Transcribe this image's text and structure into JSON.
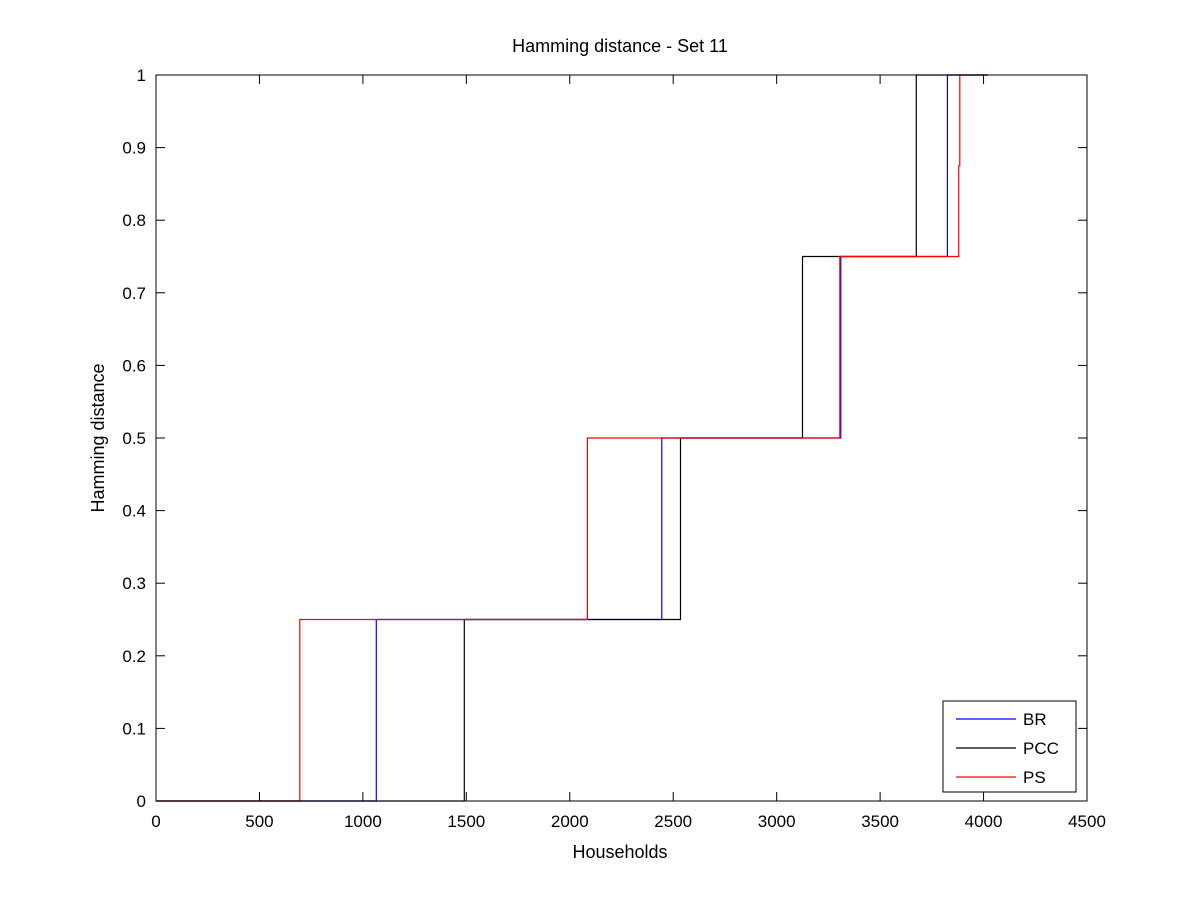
{
  "chart_data": {
    "type": "line",
    "title": "Hamming distance - Set 11",
    "xlabel": "Households",
    "ylabel": "Hamming distance",
    "xlim": [
      0,
      4500
    ],
    "ylim": [
      0,
      1
    ],
    "x_ticks": [
      "0",
      "500",
      "1000",
      "1500",
      "2000",
      "2500",
      "3000",
      "3500",
      "4000",
      "4500"
    ],
    "y_ticks": [
      "0",
      "0.1",
      "0.2",
      "0.3",
      "0.4",
      "0.5",
      "0.6",
      "0.7",
      "0.8",
      "0.9",
      "1"
    ],
    "x_tick_values": [
      0,
      500,
      1000,
      1500,
      2000,
      2500,
      3000,
      3500,
      4000,
      4500
    ],
    "y_tick_values": [
      0,
      0.1,
      0.2,
      0.3,
      0.4,
      0.5,
      0.6,
      0.7,
      0.8,
      0.9,
      1
    ],
    "grid": false,
    "legend_position": "bottom-right",
    "series": [
      {
        "name": "BR",
        "color": "#0000ff",
        "points": [
          [
            0,
            0
          ],
          [
            1065,
            0
          ],
          [
            1065,
            0.25
          ],
          [
            2445,
            0.25
          ],
          [
            2445,
            0.5
          ],
          [
            3310,
            0.5
          ],
          [
            3310,
            0.625
          ],
          [
            3310,
            0.75
          ],
          [
            3825,
            0.75
          ],
          [
            3825,
            1
          ],
          [
            4020,
            1
          ]
        ]
      },
      {
        "name": "PCC",
        "color": "#000000",
        "points": [
          [
            0,
            0
          ],
          [
            1490,
            0
          ],
          [
            1490,
            0.25
          ],
          [
            2535,
            0.25
          ],
          [
            2535,
            0.5
          ],
          [
            3125,
            0.5
          ],
          [
            3125,
            0.75
          ],
          [
            3675,
            0.75
          ],
          [
            3675,
            1
          ],
          [
            4020,
            1
          ]
        ]
      },
      {
        "name": "PS",
        "color": "#ff0000",
        "points": [
          [
            0,
            0
          ],
          [
            695,
            0
          ],
          [
            695,
            0.25
          ],
          [
            2085,
            0.25
          ],
          [
            2085,
            0.5
          ],
          [
            3305,
            0.5
          ],
          [
            3305,
            0.75
          ],
          [
            3880,
            0.75
          ],
          [
            3880,
            0.875
          ],
          [
            3885,
            0.875
          ],
          [
            3885,
            1
          ],
          [
            4020,
            1
          ]
        ]
      }
    ]
  }
}
